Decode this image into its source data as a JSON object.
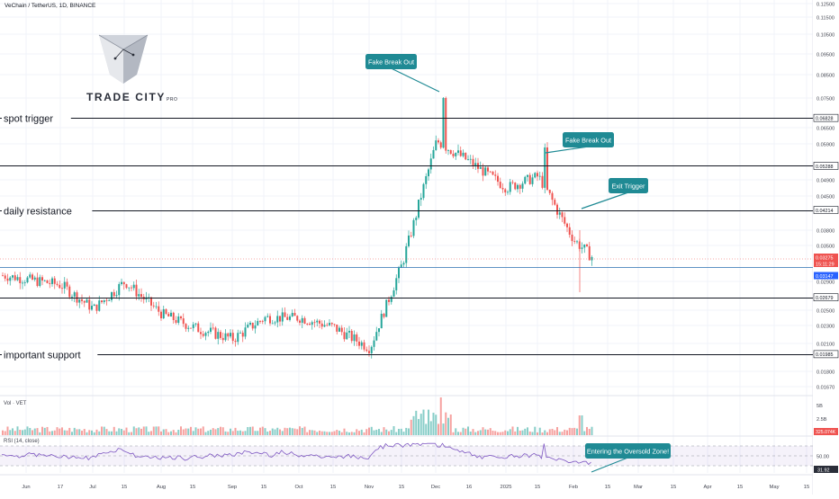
{
  "header": {
    "title": "VeChain / TetherUS, 1D, BINANCE"
  },
  "logo": {
    "word": "TRADE CITY",
    "suffix": "PRO"
  },
  "colors": {
    "up": "#26a69a",
    "down": "#ef5350",
    "callout": "#1f8a94",
    "rsi": "#7e57c2",
    "grid": "#f0f3fa"
  },
  "chart_data": [
    {
      "type": "candlestick",
      "title": "VeChain / TetherUS, 1D, BINANCE",
      "x_tick_labels": [
        "Jun",
        "17",
        "Jul",
        "15",
        "Aug",
        "15",
        "Sep",
        "15",
        "Oct",
        "15",
        "Nov",
        "15",
        "Dec",
        "16",
        "2025",
        "15",
        "Feb",
        "15",
        "Mar",
        "15",
        "Apr",
        "15",
        "May",
        "15"
      ],
      "y_tick_labels": [
        "0.12500",
        "0.11500",
        "0.10500",
        "0.09500",
        "0.08500",
        "0.07500",
        "0.06500",
        "0.05900",
        "0.04900",
        "0.04500",
        "0.03800",
        "0.03500",
        "0.02900",
        "0.02500",
        "0.02300",
        "0.02100",
        "0.01800",
        "0.01670"
      ],
      "price_markers": [
        {
          "value": "0.06828",
          "color": "#ffffff"
        },
        {
          "value": "0.05288",
          "color": "#ffffff"
        },
        {
          "value": "0.04214",
          "color": "#ffffff"
        },
        {
          "value": "0.03275",
          "color": "#ef5350"
        },
        {
          "value": "15:11:29",
          "color": "#ef5350"
        },
        {
          "value": "0.03147",
          "color": "#2962ff"
        },
        {
          "value": "0.02679",
          "color": "#ffffff"
        },
        {
          "value": "0.01985",
          "color": "#ffffff"
        }
      ],
      "horizontal_levels": [
        {
          "value": 0.06828,
          "label": "spot trigger"
        },
        {
          "value": 0.05288,
          "label": ""
        },
        {
          "value": 0.04214,
          "label": "daily resistance"
        },
        {
          "value": 0.03147,
          "label": ""
        },
        {
          "value": 0.02679,
          "label": ""
        },
        {
          "value": 0.01985,
          "label": "important support"
        }
      ],
      "annotations": [
        {
          "text": "Fake Break Out",
          "target": "Dec high"
        },
        {
          "text": "Fake Break Out",
          "target": "Jan high"
        },
        {
          "text": "Exit Trigger",
          "target": "Feb breakdown"
        }
      ],
      "close_path": [
        [
          "Jun",
          0.03
        ],
        [
          "17",
          0.0285
        ],
        [
          "Jul",
          0.0252
        ],
        [
          "15",
          0.029
        ],
        [
          "Aug",
          0.0245
        ],
        [
          "15",
          0.0228
        ],
        [
          "Sep",
          0.0215
        ],
        [
          "15",
          0.024
        ],
        [
          "Oct",
          0.024
        ],
        [
          "15",
          0.0228
        ],
        [
          "Nov",
          0.0205
        ],
        [
          "15",
          0.032
        ],
        [
          "Dec",
          0.06
        ],
        [
          "16",
          0.054
        ],
        [
          "2025",
          0.047
        ],
        [
          "15",
          0.05
        ],
        [
          "Feb",
          0.036
        ]
      ]
    },
    {
      "type": "bar",
      "title": "Vol · VET",
      "y_tick_labels": [
        "5B",
        "2.5B"
      ],
      "last_value": "325.074K"
    },
    {
      "type": "line",
      "title": "RSI (14, close)",
      "y_tick_labels": [
        "50.00"
      ],
      "last_value": "31.92",
      "annotation": "Entering the Oversold Zone!"
    }
  ]
}
